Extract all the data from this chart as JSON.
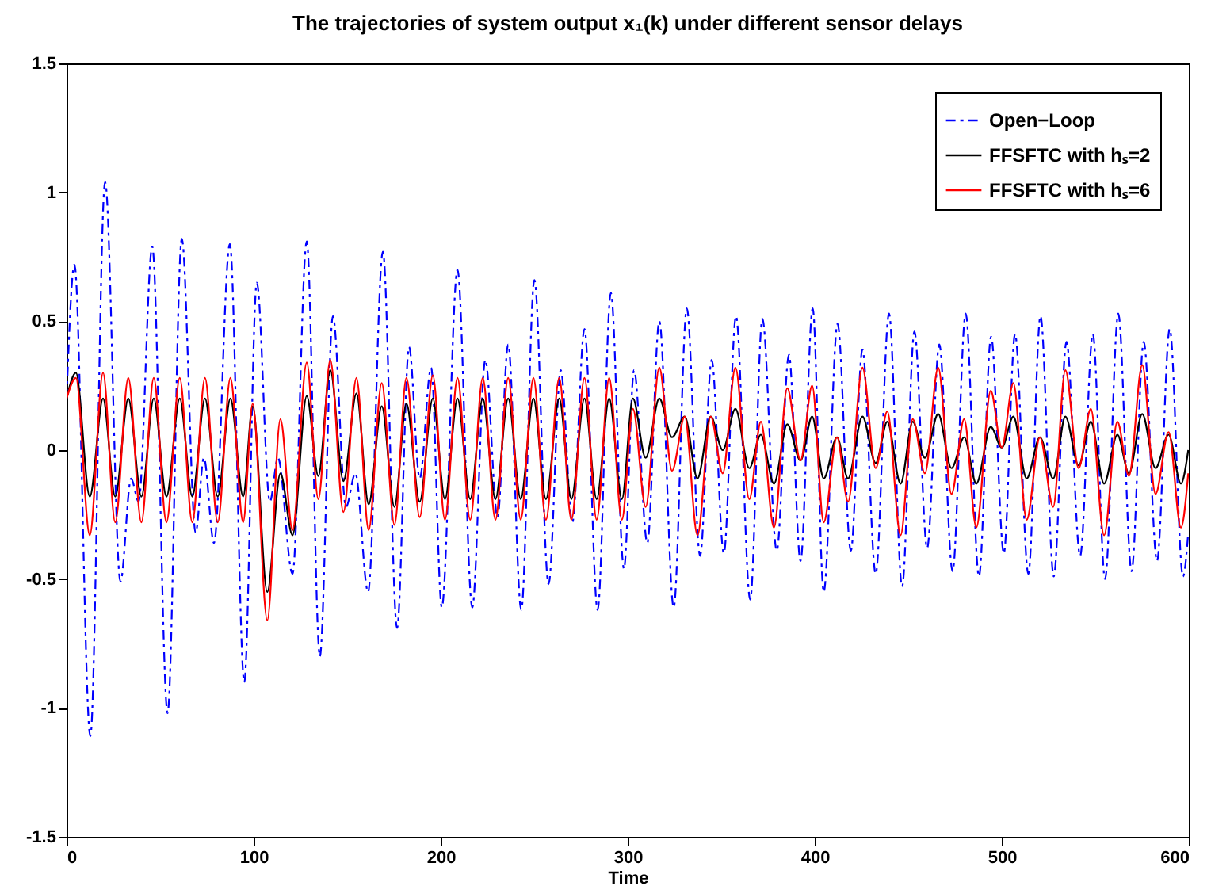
{
  "chart_data": {
    "type": "line",
    "title": "The trajectories of system output x₁(k) under different sensor delays",
    "xlabel": "Time",
    "xlim": [
      0,
      600
    ],
    "xticks": [
      0,
      100,
      200,
      300,
      400,
      500,
      600
    ],
    "ylim": [
      -1.5,
      1.5
    ],
    "yticks": [
      -1.5,
      -1,
      -0.5,
      0,
      0.5,
      1,
      1.5
    ],
    "legend": "top right",
    "x": [
      0,
      5,
      12.4,
      19.5,
      26,
      33,
      40,
      46.6,
      53.4,
      60.5,
      67.2,
      74,
      80.8,
      87.6,
      94.4,
      99.5,
      107.3,
      114.3,
      120.8,
      128.4,
      134.6,
      141,
      148,
      155,
      161.5,
      168.5,
      175.3,
      181.7,
      188.8,
      195.8,
      202.3,
      209,
      215.8,
      222.5,
      229.3,
      236.1,
      242.8,
      249.6,
      256.3,
      263.4,
      269.9,
      276.9,
      283.4,
      290.1,
      296.9,
      302.8,
      309.6,
      316.9,
      323.7,
      330.5,
      337.3,
      344.4,
      350.8,
      357.6,
      365,
      371.2,
      378.2,
      385.3,
      392.4,
      398.6,
      404.8,
      411.9,
      417.8,
      425.5,
      432.6,
      438.8,
      445.9,
      452.4,
      458.9,
      466,
      473.1,
      479.9,
      486.4,
      494.1,
      500,
      506.2,
      513.3,
      520.4,
      527.5,
      534,
      541.1,
      547.6,
      554.7,
      561.8,
      568,
      575.1,
      582.2,
      589.2,
      595.8,
      599.7
    ],
    "series": [
      {
        "name": "Open−Loop",
        "color": "#0000ff",
        "line_style": "dashed",
        "x": [
          0,
          4.2,
          12.7,
          20.6,
          28.8,
          34.5,
          38.5,
          45.8,
          54,
          61.6,
          69,
          73.4,
          78.8,
          87.3,
          95,
          101.7,
          108.7,
          113,
          120.8,
          128.4,
          135.4,
          142.4,
          149.4,
          154.4,
          161.2,
          169.1,
          176.7,
          183.1,
          188.8,
          194.9,
          200.6,
          209,
          216.9,
          223.9,
          230.4,
          236.1,
          243.1,
          250.1,
          257.7,
          264.2,
          270.4,
          276.9,
          283.9,
          291,
          298,
          303.4,
          310.5,
          316.9,
          324.6,
          331.6,
          338.7,
          344.9,
          351.4,
          357.9,
          365.5,
          372,
          379.7,
          386.2,
          392.4,
          398.9,
          404.8,
          412.2,
          419.3,
          425.5,
          432.6,
          439.7,
          446.7,
          453.3,
          460.1,
          466.6,
          473.7,
          480.7,
          487.8,
          494.3,
          501.1,
          507.1,
          514.2,
          520.7,
          527.8,
          534.6,
          541.9,
          548.7,
          555.2,
          562.3,
          569.4,
          575.9,
          583,
          589.8,
          596.9,
          599.7
        ],
        "values": [
          0.2,
          0.72,
          -1.11,
          1.04,
          -0.51,
          -0.11,
          -0.2,
          0.79,
          -1.02,
          0.82,
          -0.32,
          -0.03,
          -0.36,
          0.8,
          -0.9,
          0.65,
          -0.2,
          -0.03,
          -0.48,
          0.81,
          -0.8,
          0.52,
          -0.22,
          -0.09,
          -0.55,
          0.77,
          -0.69,
          0.4,
          -0.11,
          0.32,
          -0.61,
          0.7,
          -0.61,
          0.35,
          -0.26,
          0.41,
          -0.62,
          0.66,
          -0.52,
          0.31,
          -0.28,
          0.47,
          -0.62,
          0.61,
          -0.46,
          0.31,
          -0.36,
          0.5,
          -0.61,
          0.55,
          -0.41,
          0.35,
          -0.4,
          0.52,
          -0.58,
          0.51,
          -0.39,
          0.37,
          -0.43,
          0.55,
          -0.55,
          0.49,
          -0.39,
          0.39,
          -0.48,
          0.53,
          -0.53,
          0.46,
          -0.38,
          0.41,
          -0.47,
          0.53,
          -0.49,
          0.44,
          -0.4,
          0.45,
          -0.48,
          0.52,
          -0.49,
          0.42,
          -0.41,
          0.45,
          -0.5,
          0.53,
          -0.47,
          0.42,
          -0.43,
          0.47,
          -0.49,
          -0.32
        ]
      },
      {
        "name": "FFSFTC with hₛ=2",
        "color": "#000000",
        "line_style": "solid",
        "values": [
          0.2,
          0.3,
          -0.18,
          0.2,
          -0.18,
          0.2,
          -0.18,
          0.2,
          -0.18,
          0.2,
          -0.18,
          0.2,
          -0.18,
          0.2,
          -0.18,
          0.17,
          -0.55,
          -0.09,
          -0.33,
          0.21,
          -0.1,
          0.31,
          -0.12,
          0.22,
          -0.21,
          0.17,
          -0.22,
          0.18,
          -0.2,
          0.2,
          -0.19,
          0.2,
          -0.19,
          0.2,
          -0.19,
          0.2,
          -0.19,
          0.2,
          -0.19,
          0.2,
          -0.19,
          0.2,
          -0.19,
          0.2,
          -0.19,
          0.2,
          -0.03,
          0.2,
          0.05,
          0.13,
          -0.11,
          0.13,
          0,
          0.16,
          -0.07,
          0.06,
          -0.13,
          0.1,
          -0.04,
          0.13,
          -0.11,
          0.05,
          -0.11,
          0.13,
          -0.05,
          0.11,
          -0.13,
          0.11,
          -0.03,
          0.14,
          -0.07,
          0.05,
          -0.13,
          0.09,
          0.01,
          0.13,
          -0.11,
          0.05,
          -0.11,
          0.13,
          -0.06,
          0.11,
          -0.13,
          0.06,
          -0.09,
          0.14,
          -0.07,
          0.06,
          -0.13,
          0
        ]
      },
      {
        "name": "FFSFTC with hₛ=6",
        "color": "#ff0000",
        "line_style": "solid",
        "values": [
          0.2,
          0.28,
          -0.33,
          0.3,
          -0.28,
          0.28,
          -0.28,
          0.28,
          -0.28,
          0.28,
          -0.28,
          0.28,
          -0.28,
          0.28,
          -0.28,
          0.18,
          -0.66,
          0.12,
          -0.31,
          0.34,
          -0.19,
          0.35,
          -0.24,
          0.28,
          -0.31,
          0.26,
          -0.29,
          0.28,
          -0.26,
          0.29,
          -0.27,
          0.28,
          -0.27,
          0.28,
          -0.27,
          0.28,
          -0.27,
          0.28,
          -0.27,
          0.28,
          -0.27,
          0.28,
          -0.27,
          0.28,
          -0.27,
          0.16,
          -0.22,
          0.32,
          -0.08,
          0.13,
          -0.33,
          0.13,
          -0.09,
          0.32,
          -0.19,
          0.11,
          -0.3,
          0.24,
          -0.04,
          0.25,
          -0.28,
          0.05,
          -0.2,
          0.32,
          -0.07,
          0.15,
          -0.33,
          0.12,
          -0.09,
          0.32,
          -0.17,
          0.12,
          -0.3,
          0.23,
          0.01,
          0.26,
          -0.27,
          0.05,
          -0.22,
          0.31,
          -0.07,
          0.16,
          -0.33,
          0.11,
          -0.1,
          0.33,
          -0.17,
          0.07,
          -0.3,
          -0.09
        ]
      }
    ]
  }
}
